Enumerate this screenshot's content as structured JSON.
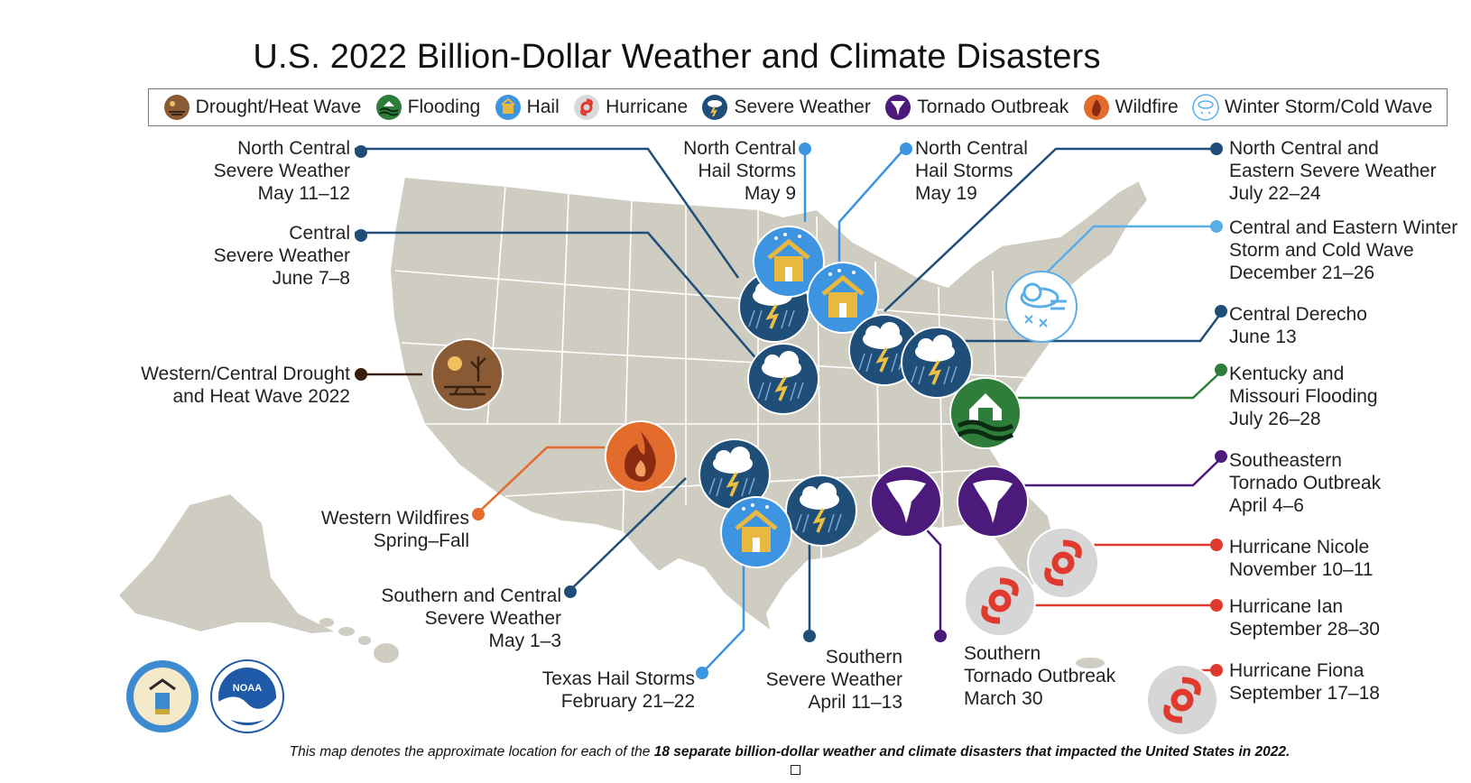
{
  "title": "U.S. 2022 Billion-Dollar Weather and Climate Disasters",
  "legend": [
    {
      "label": "Drought/Heat Wave",
      "icon": "drought-icon",
      "color": "#8a5a35"
    },
    {
      "label": "Flooding",
      "icon": "flooding-icon",
      "color": "#2e7d3a"
    },
    {
      "label": "Hail",
      "icon": "hail-icon",
      "color": "#3d94e0"
    },
    {
      "label": "Hurricane",
      "icon": "hurricane-icon",
      "color": "#d9d9d9"
    },
    {
      "label": "Severe Weather",
      "icon": "severe-weather-icon",
      "color": "#1f4e79"
    },
    {
      "label": "Tornado Outbreak",
      "icon": "tornado-icon",
      "color": "#4b1a7a"
    },
    {
      "label": "Wildfire",
      "icon": "wildfire-icon",
      "color": "#e36b2c"
    },
    {
      "label": "Winter Storm/Cold Wave",
      "icon": "winter-storm-icon",
      "color": "#5aaee8"
    }
  ],
  "events": [
    {
      "name": "North Central\nSevere Weather\nMay 11–12",
      "type": "severe-weather"
    },
    {
      "name": "Central\nSevere Weather\nJune 7–8",
      "type": "severe-weather"
    },
    {
      "name": "Western/Central Drought\nand Heat Wave 2022",
      "type": "drought"
    },
    {
      "name": "Western Wildfires\nSpring–Fall",
      "type": "wildfire"
    },
    {
      "name": "Southern and Central\nSevere Weather\nMay 1–3",
      "type": "severe-weather"
    },
    {
      "name": "Texas Hail Storms\nFebruary 21–22",
      "type": "hail"
    },
    {
      "name": "Southern\nSevere Weather\nApril 11–13",
      "type": "severe-weather"
    },
    {
      "name": "Southern\nTornado Outbreak\nMarch 30",
      "type": "tornado"
    },
    {
      "name": "North Central\nHail Storms\nMay 9",
      "type": "hail"
    },
    {
      "name": "North Central\nHail Storms\nMay 19",
      "type": "hail"
    },
    {
      "name": "North Central and\nEastern Severe Weather\nJuly 22–24",
      "type": "severe-weather"
    },
    {
      "name": "Central and Eastern Winter\nStorm and Cold Wave\nDecember 21–26",
      "type": "winter-storm"
    },
    {
      "name": "Central Derecho\nJune 13",
      "type": "severe-weather"
    },
    {
      "name": "Kentucky and\nMissouri Flooding\nJuly 26–28",
      "type": "flooding"
    },
    {
      "name": "Southeastern\nTornado Outbreak\nApril 4–6",
      "type": "tornado"
    },
    {
      "name": "Hurricane Nicole\nNovember 10–11",
      "type": "hurricane"
    },
    {
      "name": "Hurricane Ian\nSeptember 28–30",
      "type": "hurricane"
    },
    {
      "name": "Hurricane Fiona\nSeptember 17–18",
      "type": "hurricane"
    }
  ],
  "footnote": {
    "prefix": "This map denotes the approximate location for each of the ",
    "bold": "18 separate billion-dollar weather and climate disasters that impacted the United States in 2022."
  },
  "logos": [
    "commerce-seal",
    "noaa-logo"
  ]
}
